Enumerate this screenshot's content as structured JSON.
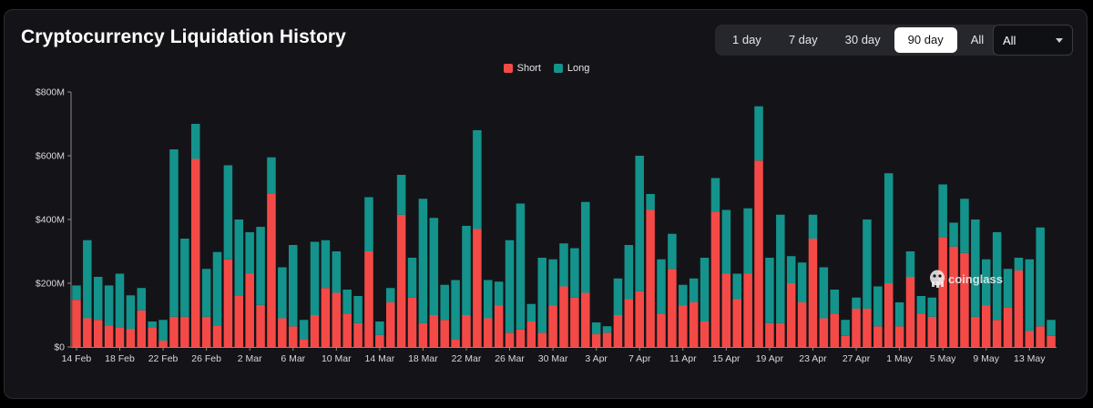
{
  "header": {
    "title": "Cryptocurrency Liquidation History"
  },
  "range_selector": {
    "options": [
      "1 day",
      "7 day",
      "30 day",
      "90 day",
      "All"
    ],
    "selected": "90 day"
  },
  "coin_select": {
    "value": "All"
  },
  "watermark": {
    "text": "coinglass"
  },
  "colors": {
    "short": "#f44a47",
    "long": "#13938b"
  },
  "chart_data": {
    "type": "bar",
    "stacked": true,
    "legend_position": "top-center",
    "grid": false,
    "ylim": [
      0,
      800
    ],
    "y_unit": "M USD",
    "y_ticks": [
      0,
      200,
      400,
      600,
      800
    ],
    "y_tick_labels": [
      "$0",
      "$200M",
      "$400M",
      "$600M",
      "$800M"
    ],
    "x_tick_labels": [
      {
        "index": 0,
        "label": "14 Feb"
      },
      {
        "index": 4,
        "label": "18 Feb"
      },
      {
        "index": 8,
        "label": "22 Feb"
      },
      {
        "index": 12,
        "label": "26 Feb"
      },
      {
        "index": 16,
        "label": "2 Mar"
      },
      {
        "index": 20,
        "label": "6 Mar"
      },
      {
        "index": 24,
        "label": "10 Mar"
      },
      {
        "index": 28,
        "label": "14 Mar"
      },
      {
        "index": 32,
        "label": "18 Mar"
      },
      {
        "index": 36,
        "label": "22 Mar"
      },
      {
        "index": 40,
        "label": "26 Mar"
      },
      {
        "index": 44,
        "label": "30 Mar"
      },
      {
        "index": 48,
        "label": "3 Apr"
      },
      {
        "index": 52,
        "label": "7 Apr"
      },
      {
        "index": 56,
        "label": "11 Apr"
      },
      {
        "index": 60,
        "label": "15 Apr"
      },
      {
        "index": 64,
        "label": "19 Apr"
      },
      {
        "index": 68,
        "label": "23 Apr"
      },
      {
        "index": 72,
        "label": "27 Apr"
      },
      {
        "index": 76,
        "label": "1 May"
      },
      {
        "index": 80,
        "label": "5 May"
      },
      {
        "index": 84,
        "label": "9 May"
      },
      {
        "index": 88,
        "label": "13 May"
      }
    ],
    "series": [
      {
        "name": "Short",
        "values": [
          148,
          90,
          85,
          68,
          60,
          57,
          115,
          60,
          20,
          95,
          95,
          590,
          95,
          68,
          275,
          160,
          230,
          132,
          480,
          90,
          65,
          25,
          100,
          185,
          170,
          105,
          75,
          300,
          38,
          140,
          415,
          155,
          75,
          100,
          85,
          25,
          100,
          370,
          90,
          130,
          45,
          55,
          80,
          45,
          130,
          190,
          155,
          170,
          40,
          45,
          100,
          150,
          175,
          430,
          105,
          245,
          130,
          140,
          80,
          425,
          230,
          150,
          230,
          585,
          75,
          75,
          200,
          140,
          340,
          90,
          105,
          35,
          120,
          120,
          65,
          200,
          65,
          220,
          105,
          95,
          345,
          315,
          295,
          95,
          130,
          85,
          125,
          240,
          50,
          65,
          35
        ]
      },
      {
        "name": "Long",
        "values": [
          45,
          245,
          135,
          125,
          170,
          105,
          70,
          20,
          65,
          525,
          245,
          110,
          150,
          230,
          295,
          240,
          130,
          245,
          115,
          160,
          255,
          60,
          230,
          150,
          130,
          75,
          85,
          170,
          42,
          45,
          125,
          125,
          390,
          305,
          110,
          185,
          280,
          310,
          120,
          75,
          290,
          395,
          55,
          235,
          145,
          135,
          155,
          285,
          37,
          20,
          115,
          170,
          425,
          50,
          170,
          110,
          65,
          75,
          200,
          105,
          200,
          80,
          205,
          170,
          205,
          340,
          85,
          125,
          75,
          160,
          75,
          50,
          35,
          280,
          125,
          345,
          75,
          80,
          55,
          60,
          165,
          75,
          170,
          305,
          145,
          275,
          120,
          40,
          225,
          310,
          50
        ]
      }
    ]
  }
}
